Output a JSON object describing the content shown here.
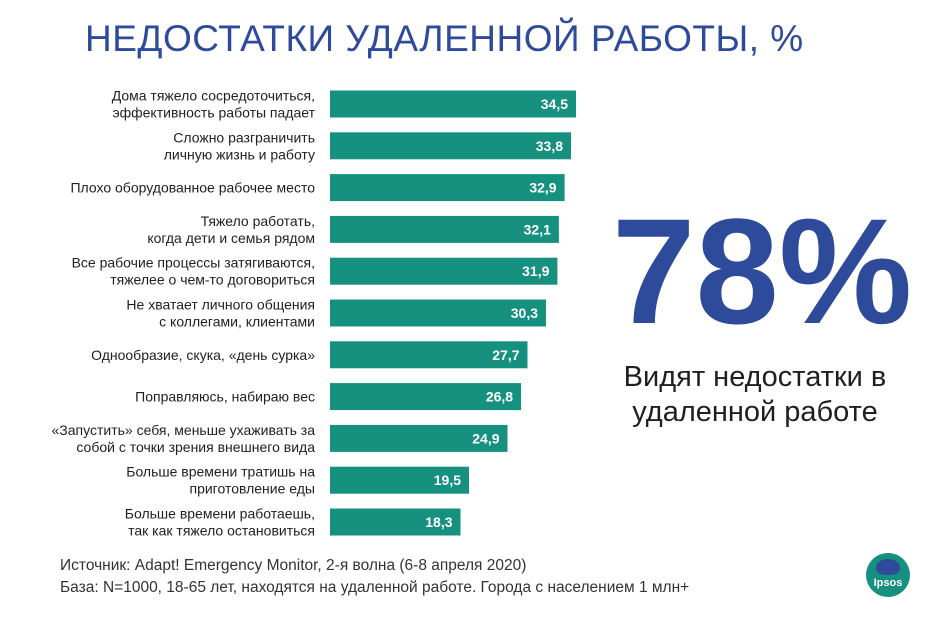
{
  "title": "НЕДОСТАТКИ УДАЛЕННОЙ РАБОТЫ, %",
  "highlight": {
    "value": "78%",
    "caption": "Видят недостатки в удаленной работе"
  },
  "source": {
    "line1": "Источник: Adapt! Emergency Monitor, 2-я волна (6-8 апреля 2020)",
    "line2": "База: N=1000, 18-65 лет, находятся на удаленной работе. Города с населением 1 млн+"
  },
  "logo": {
    "text": "Ipsos"
  },
  "colors": {
    "bar": "#16907f",
    "title": "#2e4a9b",
    "label": "#1f1f1f"
  },
  "chart_data": {
    "type": "bar",
    "orientation": "horizontal",
    "title": "НЕДОСТАТКИ УДАЛЕННОЙ РАБОТЫ, %",
    "xlabel": "",
    "ylabel": "",
    "xlim": [
      0,
      40
    ],
    "grid": false,
    "legend": "none",
    "categories": [
      [
        "Дома тяжело сосредоточиться,",
        "эффективность работы падает"
      ],
      [
        "Сложно разграничить",
        "личную жизнь и работу"
      ],
      [
        "Плохо оборудованное рабочее место"
      ],
      [
        "Тяжело работать,",
        "когда дети и семья рядом"
      ],
      [
        "Все рабочие процессы затягиваются,",
        "тяжелее о чем-то договориться"
      ],
      [
        "Не хватает личного общения",
        "с коллегами, клиентами"
      ],
      [
        "Однообразие, скука, «день сурка»"
      ],
      [
        "Поправляюсь, набираю вес"
      ],
      [
        "«Запустить» себя, меньше ухаживать за",
        "собой с точки зрения внешнего вида"
      ],
      [
        "Больше времени тратишь на",
        "приготовление еды"
      ],
      [
        "Больше времени работаешь,",
        "так как тяжело остановиться"
      ]
    ],
    "values": [
      34.5,
      33.8,
      32.9,
      32.1,
      31.9,
      30.3,
      27.7,
      26.8,
      24.9,
      19.5,
      18.3
    ],
    "value_labels": [
      "34,5",
      "33,8",
      "32,9",
      "32,1",
      "31,9",
      "30,3",
      "27,7",
      "26,8",
      "24,9",
      "19,5",
      "18,3"
    ]
  }
}
